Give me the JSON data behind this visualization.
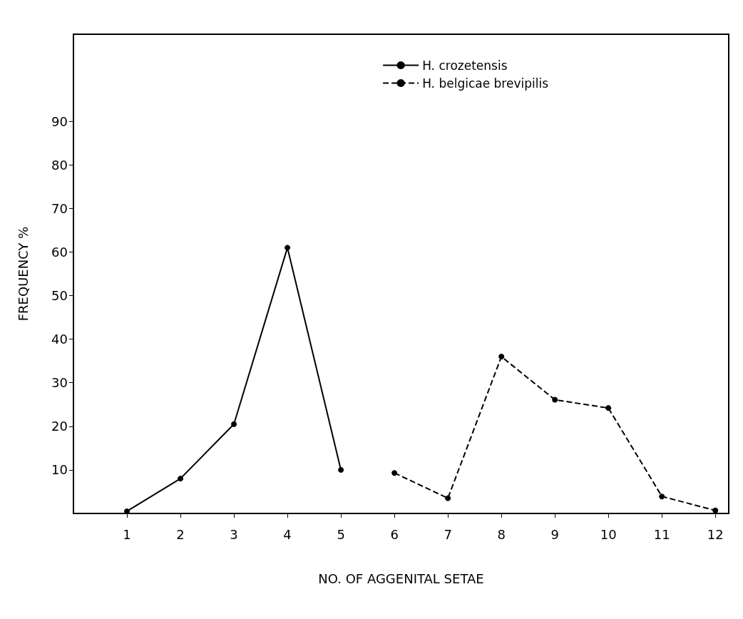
{
  "chart_data": {
    "type": "line",
    "xlabel": "NO. OF AGGENITAL SETAE",
    "ylabel": "FREQUENCY %",
    "xlim": [
      0,
      12.25
    ],
    "xticks": [
      1,
      2,
      3,
      4,
      5,
      6,
      7,
      8,
      9,
      10,
      11,
      12
    ],
    "ylim": [
      0,
      110
    ],
    "yticks": [
      10,
      20,
      30,
      40,
      50,
      60,
      70,
      80,
      90
    ],
    "series": [
      {
        "name": "H. crozetensis",
        "color": "#000000",
        "line_style": "solid",
        "x": [
          1,
          2,
          3,
          4,
          5
        ],
        "values": [
          0.5,
          8,
          20.5,
          61,
          10
        ]
      },
      {
        "name": "H. belgicae brevipilis",
        "color": "#000000",
        "line_style": "dashed",
        "x": [
          6,
          7,
          8,
          9,
          10,
          11,
          12
        ],
        "values": [
          9.3,
          3.5,
          36,
          26.1,
          24.2,
          3.9,
          0.7
        ]
      }
    ],
    "marker": "circle",
    "grid": false,
    "legend": "top right"
  }
}
